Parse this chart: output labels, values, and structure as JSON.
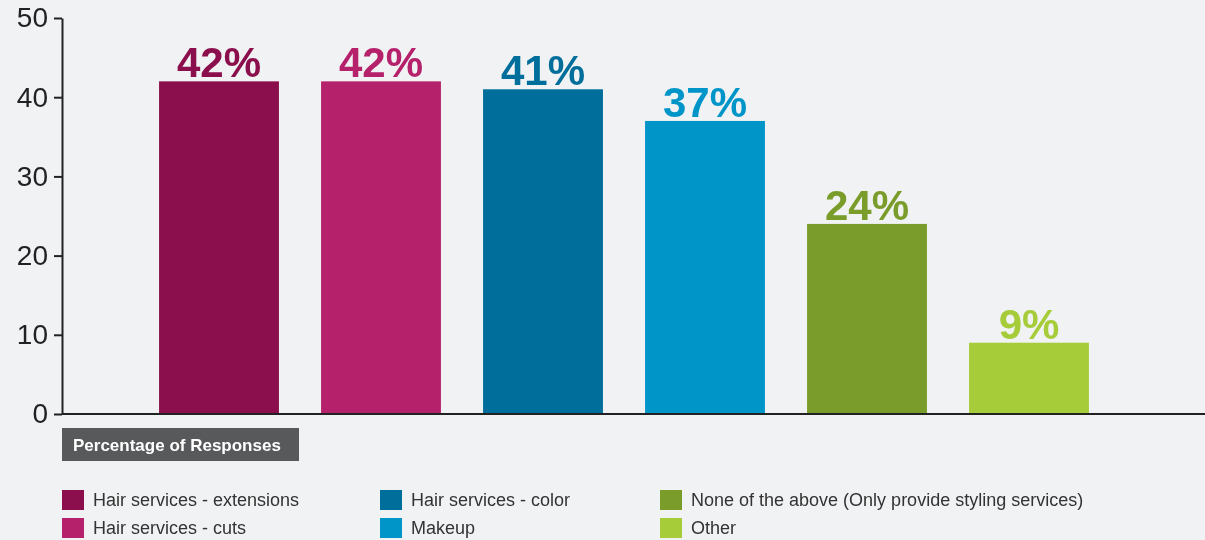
{
  "chart_data": {
    "type": "bar",
    "xlabel": "Percentage of Responses",
    "categories": [
      null,
      null,
      null,
      null,
      null,
      null
    ],
    "series": [
      {
        "name": "Hair services - extensions",
        "color": "#8a0f4c",
        "values": [
          42,
          null,
          null,
          null,
          null,
          null
        ],
        "value_labels": [
          "42%",
          null,
          null,
          null,
          null,
          null
        ]
      },
      {
        "name": "Hair services - cuts",
        "color": "#b5226b",
        "values": [
          null,
          42,
          null,
          null,
          null,
          null
        ],
        "value_labels": [
          null,
          "42%",
          null,
          null,
          null,
          null
        ]
      },
      {
        "name": "Hair services - color",
        "color": "#006e9a",
        "values": [
          null,
          null,
          41,
          null,
          null,
          null
        ],
        "value_labels": [
          null,
          null,
          "41%",
          null,
          null,
          null
        ]
      },
      {
        "name": "Makeup",
        "color": "#0095c9",
        "values": [
          null,
          null,
          null,
          37,
          null,
          null
        ],
        "value_labels": [
          null,
          null,
          null,
          "37%",
          null,
          null
        ]
      },
      {
        "name": "None of the above (Only provide styling services)",
        "color": "#7a9c2a",
        "values": [
          null,
          null,
          null,
          null,
          24,
          null
        ],
        "value_labels": [
          null,
          null,
          null,
          null,
          "24%",
          null
        ]
      },
      {
        "name": "Other",
        "color": "#a7cc3a",
        "values": [
          null,
          null,
          null,
          null,
          null,
          9
        ],
        "value_labels": [
          null,
          null,
          null,
          null,
          null,
          "9%"
        ]
      }
    ],
    "ylim": [
      0,
      50
    ],
    "yticks": [
      0,
      10,
      20,
      30,
      40,
      50
    ],
    "grid": false,
    "legend": "bottom",
    "tick_labels": "y"
  }
}
